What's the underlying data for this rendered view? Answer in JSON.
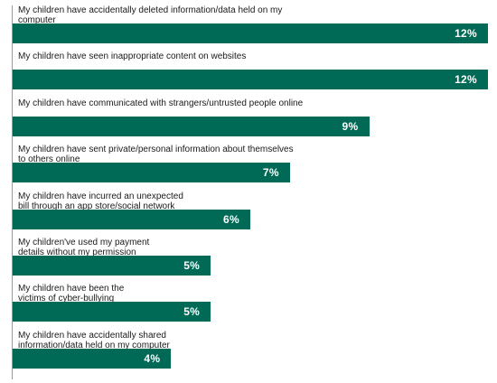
{
  "colors": {
    "bar": "#006a56",
    "axis": "#9a9a9a",
    "text": "#1a1a1a"
  },
  "chart_data": {
    "type": "bar",
    "orientation": "horizontal",
    "value_format": "percent",
    "grid": false,
    "legend": "none",
    "xlim": [
      0,
      12
    ],
    "categories": [
      "My children have accidentally deleted information/data held on my computer",
      "My children have seen inappropriate content on websites",
      "My children have communicated with strangers/untrusted people online",
      "My children have sent private/personal information about themselves\nto others online",
      "My children have incurred an unexpected\nbill through an app store/social network",
      "My children've used my payment\ndetails without my permission",
      "My children have been the\nvictims of cyber-bullying",
      "My children have accidentally shared\ninformation/data held on my computer"
    ],
    "values": [
      12,
      12,
      9,
      7,
      6,
      5,
      5,
      4
    ],
    "value_labels": [
      "12%",
      "12%",
      "9%",
      "7%",
      "6%",
      "5%",
      "5%",
      "4%"
    ]
  }
}
